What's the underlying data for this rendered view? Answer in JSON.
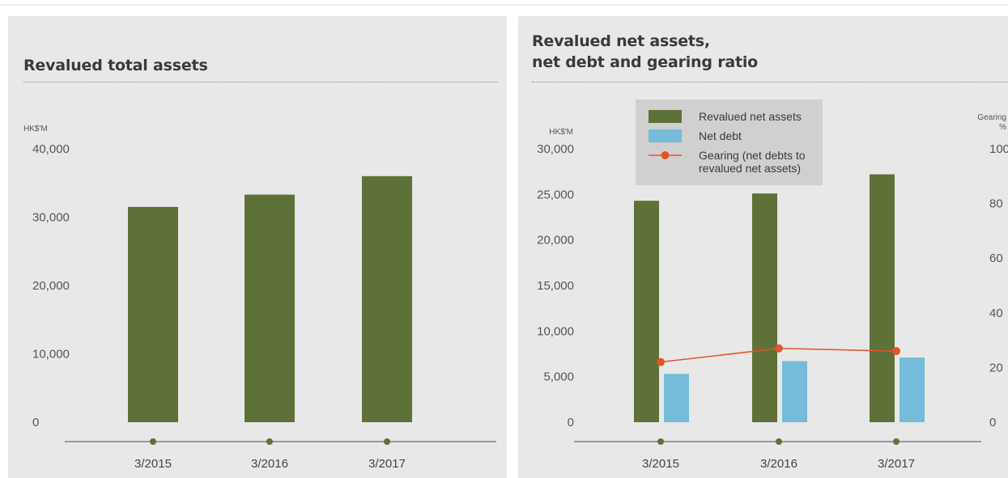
{
  "panels": {
    "left": {
      "title": "Revalued total assets"
    },
    "right": {
      "title": "Revalued net assets,\nnet debt and gearing ratio"
    }
  },
  "colors": {
    "assets": "#5e7138",
    "net_debt": "#74bcd7",
    "gearing": "#e2542a",
    "axis": "#4a4a4a"
  },
  "chart_data": [
    {
      "type": "bar",
      "title": "Revalued total assets",
      "ylabel": "HK$'M",
      "categories": [
        "3/2015",
        "3/2016",
        "3/2017"
      ],
      "series": [
        {
          "values": [
            31500,
            33300,
            36000
          ]
        }
      ],
      "ylim": [
        0,
        40000
      ],
      "yticks": [
        0,
        10000,
        20000,
        30000,
        40000
      ],
      "ytick_labels": [
        "0",
        "10,000",
        "20,000",
        "30,000",
        "40,000"
      ],
      "grid": false
    },
    {
      "type": "bar",
      "title": "Revalued net assets, net debt and gearing ratio",
      "ylabel": "HK$'M",
      "y2label": "Gearing\n%",
      "categories": [
        "3/2015",
        "3/2016",
        "3/2017"
      ],
      "series": [
        {
          "name": "Revalued net assets",
          "type": "bar",
          "values": [
            24300,
            25100,
            27200
          ]
        },
        {
          "name": "Net debt",
          "type": "bar",
          "values": [
            5300,
            6700,
            7100
          ]
        },
        {
          "name": "Gearing (net debts to\nrevalued net assets)",
          "type": "line",
          "axis": "right",
          "values": [
            22,
            27,
            26
          ]
        }
      ],
      "ylim": [
        0,
        30000
      ],
      "yticks": [
        0,
        5000,
        10000,
        15000,
        20000,
        25000,
        30000
      ],
      "ytick_labels": [
        "0",
        "5,000",
        "10,000",
        "15,000",
        "20,000",
        "25,000",
        "30,000"
      ],
      "y2lim": [
        0,
        100
      ],
      "y2ticks": [
        0,
        20,
        40,
        60,
        80,
        100
      ],
      "y2tick_labels": [
        "0",
        "20",
        "40",
        "60",
        "80",
        "100"
      ],
      "legend": "top-center",
      "grid": false
    }
  ]
}
